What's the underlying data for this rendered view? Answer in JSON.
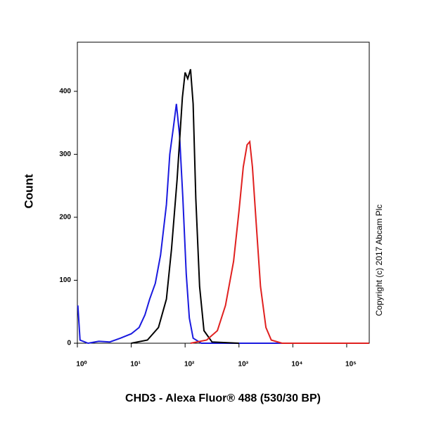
{
  "chart_data": {
    "type": "line",
    "x_label": "CHD3 - Alexa Fluor® 488 (530/30 BP)",
    "y_label": "Count",
    "annotation": "Copyright (c) 2017 Abcam Plc",
    "x_scale": "log",
    "xlim": [
      1,
      262144
    ],
    "ylim": [
      0,
      478
    ],
    "xticks": [
      {
        "value": 1,
        "label": "10⁰"
      },
      {
        "value": 10,
        "label": "10¹"
      },
      {
        "value": 100,
        "label": "10²"
      },
      {
        "value": 1000,
        "label": "10³"
      },
      {
        "value": 10000,
        "label": "10⁴"
      },
      {
        "value": 100000,
        "label": "10⁵"
      }
    ],
    "yticks": [
      0,
      100,
      200,
      300,
      400
    ],
    "series": [
      {
        "color": "#1a1adf",
        "x": [
          1.02,
          1.12,
          1.58,
          2.5,
          4,
          6.3,
          10,
          14,
          18,
          22,
          28,
          35,
          45,
          52,
          60,
          69,
          79,
          91,
          105,
          120,
          141,
          200,
          250000
        ],
        "values": [
          60,
          5,
          0,
          3,
          2,
          8,
          15,
          25,
          45,
          70,
          95,
          140,
          220,
          300,
          340,
          380,
          330,
          230,
          110,
          40,
          8,
          0,
          0
        ]
      },
      {
        "color": "#000000",
        "x": [
          10,
          20,
          32,
          45,
          56,
          71,
          89,
          100,
          112,
          126,
          141,
          158,
          186,
          224,
          316,
          1000
        ],
        "values": [
          0,
          5,
          25,
          70,
          150,
          260,
          390,
          430,
          420,
          435,
          380,
          230,
          90,
          20,
          2,
          0
        ]
      },
      {
        "color": "#e0201f",
        "x": [
          126,
          251,
          398,
          562,
          794,
          1000,
          1202,
          1413,
          1585,
          1778,
          2089,
          2512,
          3162,
          3981,
          6310,
          260000
        ],
        "values": [
          0,
          5,
          20,
          60,
          130,
          210,
          280,
          315,
          320,
          280,
          190,
          90,
          25,
          5,
          0,
          0
        ]
      }
    ]
  }
}
